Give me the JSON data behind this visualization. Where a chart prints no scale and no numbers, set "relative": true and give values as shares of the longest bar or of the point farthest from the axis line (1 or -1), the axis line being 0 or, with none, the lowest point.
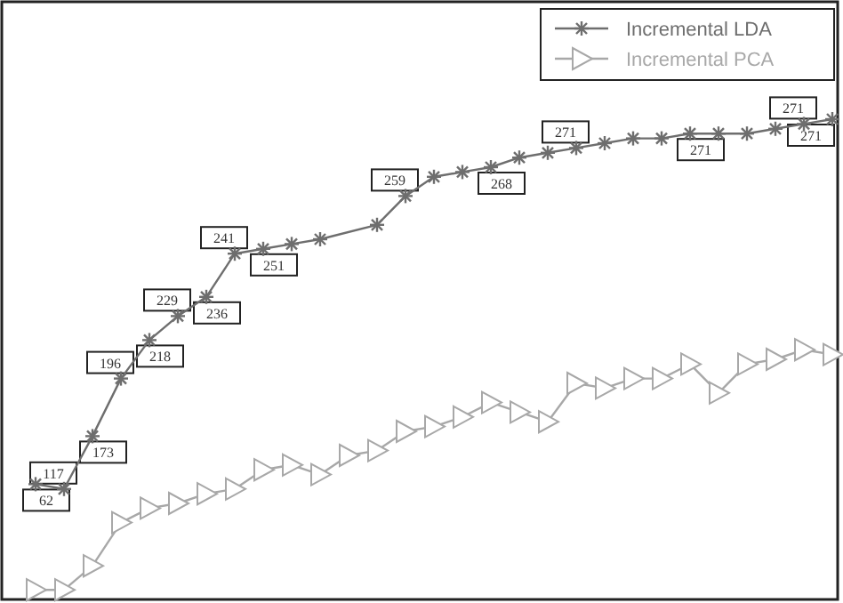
{
  "chart_data": {
    "type": "line",
    "relative": true,
    "legend": "top right",
    "categories": [
      null,
      null,
      null,
      null,
      null,
      null,
      null,
      null,
      null,
      null,
      null,
      null,
      null,
      null,
      null,
      null,
      null,
      null,
      null,
      null,
      null,
      null,
      null,
      null,
      null,
      null,
      null,
      null,
      null
    ],
    "series": [
      {
        "name": "Incremental LDA",
        "color": "#6e6e6e",
        "marker": "cross",
        "values": [
          0.24,
          0.23,
          0.34,
          0.46,
          0.54,
          0.59,
          0.63,
          0.72,
          0.73,
          0.74,
          0.75,
          null,
          0.78,
          0.84,
          0.88,
          0.89,
          0.9,
          0.92,
          0.93,
          0.94,
          0.95,
          0.96,
          0.96,
          0.97,
          0.97,
          0.97,
          0.98,
          0.99,
          1
        ]
      },
      {
        "name": "Incremental PCA",
        "color": "#a8a8a8",
        "marker": "triangle",
        "values": [
          0.02,
          0.02,
          0.07,
          0.16,
          0.19,
          0.2,
          0.22,
          0.23,
          0.27,
          0.28,
          0.26,
          0.3,
          0.31,
          0.35,
          0.36,
          0.38,
          0.41,
          0.39,
          0.37,
          0.45,
          0.44,
          0.46,
          0.46,
          0.49,
          0.43,
          0.49,
          0.5,
          0.52,
          0.51
        ]
      }
    ],
    "annotations": [
      {
        "text": "62",
        "y": 0.24
      },
      {
        "text": "117",
        "y": 0.23
      },
      {
        "text": "173",
        "y": 0.34
      },
      {
        "text": "196",
        "y": 0.46
      },
      {
        "text": "218",
        "y": 0.54
      },
      {
        "text": "229",
        "y": 0.59
      },
      {
        "text": "236",
        "y": 0.63
      },
      {
        "text": "241",
        "y": 0.72
      },
      {
        "text": "251",
        "y": 0.73
      },
      {
        "text": "259",
        "y": 0.84
      },
      {
        "text": "268",
        "y": 0.9
      },
      {
        "text": "271",
        "y": 0.94
      },
      {
        "text": "271",
        "y": 0.97
      },
      {
        "text": "271",
        "y": 0.99
      },
      {
        "text": "271",
        "y": 1
      }
    ]
  }
}
